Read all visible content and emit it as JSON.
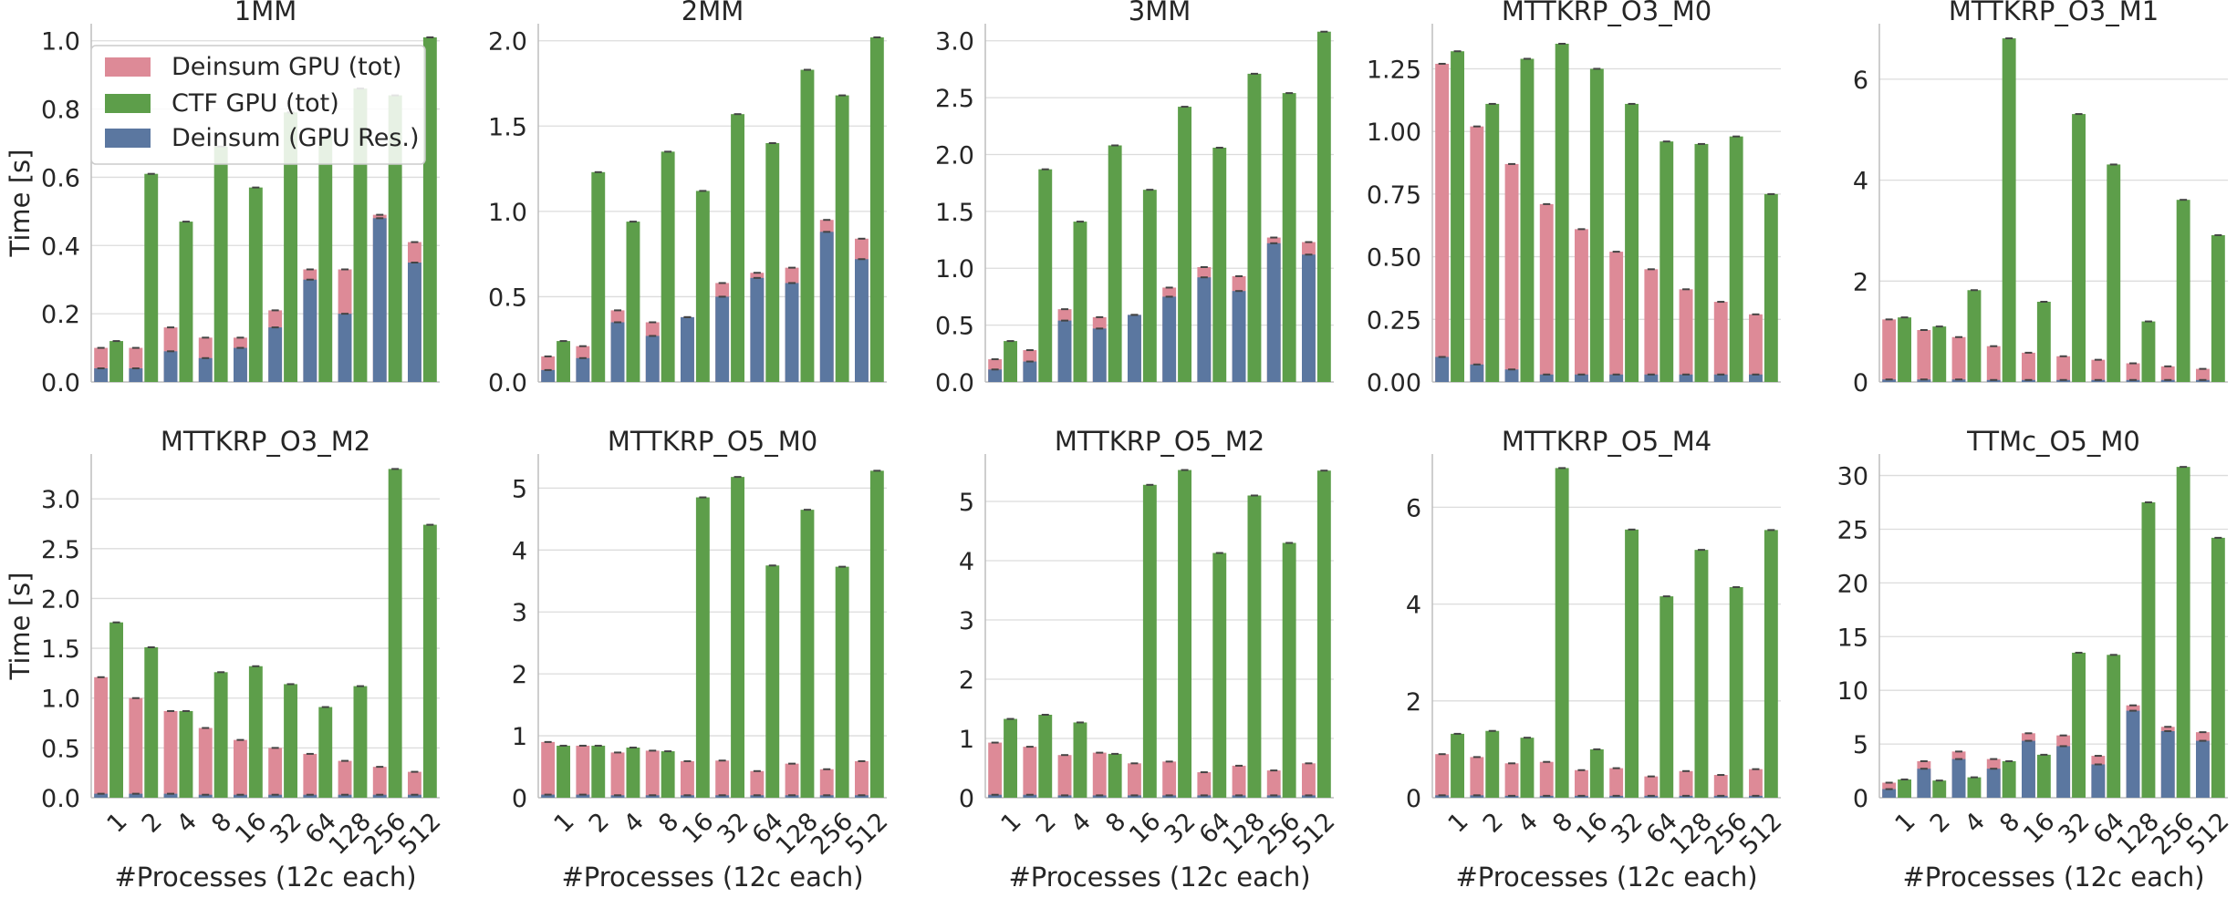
{
  "figure": {
    "ylabel": "Time [s]",
    "xlabel": "#Processes (12c each)",
    "legend": {
      "placement": "upper-left of first panel",
      "entries": [
        "Deinsum GPU (tot)",
        "CTF GPU (tot)",
        "Deinsum (GPU Res.)"
      ]
    },
    "colors": {
      "deinsum_tot": "#dd8a97",
      "ctf_tot": "#5d9e4a",
      "deinsum_res": "#5b77a0",
      "grid": "#dcdcdc",
      "axis": "#bdbdbd",
      "text": "#262626"
    }
  },
  "chart_data": [
    {
      "type": "bar",
      "title": "1MM",
      "categories": [
        "1",
        "2",
        "4",
        "8",
        "16",
        "32",
        "64",
        "128",
        "256",
        "512"
      ],
      "ylim": [
        0,
        1.05
      ],
      "yticks": [
        "0.0",
        "0.2",
        "0.4",
        "0.6",
        "0.8",
        "1.0"
      ],
      "series": [
        {
          "name": "Deinsum GPU (tot)",
          "values": [
            0.1,
            0.1,
            0.16,
            0.13,
            0.13,
            0.21,
            0.33,
            0.33,
            0.49,
            0.41
          ]
        },
        {
          "name": "CTF GPU (tot)",
          "values": [
            0.12,
            0.61,
            0.47,
            0.69,
            0.57,
            0.79,
            0.72,
            0.86,
            0.84,
            1.01
          ]
        },
        {
          "name": "Deinsum (GPU Res.)",
          "values": [
            0.04,
            0.04,
            0.09,
            0.07,
            0.1,
            0.16,
            0.3,
            0.2,
            0.48,
            0.35
          ]
        }
      ]
    },
    {
      "type": "bar",
      "title": "2MM",
      "categories": [
        "1",
        "2",
        "4",
        "8",
        "16",
        "32",
        "64",
        "128",
        "256",
        "512"
      ],
      "ylim": [
        0,
        2.1
      ],
      "yticks": [
        "0.0",
        "0.5",
        "1.0",
        "1.5",
        "2.0"
      ],
      "series": [
        {
          "name": "Deinsum GPU (tot)",
          "values": [
            0.15,
            0.21,
            0.42,
            0.35,
            0.38,
            0.58,
            0.64,
            0.67,
            0.95,
            0.84
          ]
        },
        {
          "name": "CTF GPU (tot)",
          "values": [
            0.24,
            1.23,
            0.94,
            1.35,
            1.12,
            1.57,
            1.4,
            1.83,
            1.68,
            2.02
          ]
        },
        {
          "name": "Deinsum (GPU Res.)",
          "values": [
            0.07,
            0.14,
            0.35,
            0.27,
            0.38,
            0.5,
            0.61,
            0.58,
            0.88,
            0.72
          ]
        }
      ]
    },
    {
      "type": "bar",
      "title": "3MM",
      "categories": [
        "1",
        "2",
        "4",
        "8",
        "16",
        "32",
        "64",
        "128",
        "256",
        "512"
      ],
      "ylim": [
        0,
        3.15
      ],
      "yticks": [
        "0.0",
        "0.5",
        "1.0",
        "1.5",
        "2.0",
        "2.5",
        "3.0"
      ],
      "series": [
        {
          "name": "Deinsum GPU (tot)",
          "values": [
            0.2,
            0.28,
            0.64,
            0.57,
            0.59,
            0.83,
            1.01,
            0.93,
            1.27,
            1.23
          ]
        },
        {
          "name": "CTF GPU (tot)",
          "values": [
            0.36,
            1.87,
            1.41,
            2.08,
            1.69,
            2.42,
            2.06,
            2.71,
            2.54,
            3.08
          ]
        },
        {
          "name": "Deinsum (GPU Res.)",
          "values": [
            0.11,
            0.18,
            0.54,
            0.47,
            0.59,
            0.75,
            0.92,
            0.8,
            1.22,
            1.12
          ]
        }
      ]
    },
    {
      "type": "bar",
      "title": "MTTKRP_O3_M0",
      "categories": [
        "1",
        "2",
        "4",
        "8",
        "16",
        "32",
        "64",
        "128",
        "256",
        "512"
      ],
      "ylim": [
        0,
        1.43
      ],
      "yticks": [
        "0.00",
        "0.25",
        "0.50",
        "0.75",
        "1.00",
        "1.25"
      ],
      "series": [
        {
          "name": "Deinsum GPU (tot)",
          "values": [
            1.27,
            1.02,
            0.87,
            0.71,
            0.61,
            0.52,
            0.45,
            0.37,
            0.32,
            0.27
          ]
        },
        {
          "name": "CTF GPU (tot)",
          "values": [
            1.32,
            1.11,
            1.29,
            1.35,
            1.25,
            1.11,
            0.96,
            0.95,
            0.98,
            0.75
          ]
        },
        {
          "name": "Deinsum (GPU Res.)",
          "values": [
            0.1,
            0.07,
            0.05,
            0.03,
            0.03,
            0.03,
            0.03,
            0.03,
            0.03,
            0.03
          ]
        }
      ]
    },
    {
      "type": "bar",
      "title": "MTTKRP_O3_M1",
      "categories": [
        "1",
        "2",
        "4",
        "8",
        "16",
        "32",
        "64",
        "128",
        "256",
        "512"
      ],
      "ylim": [
        0,
        7.1
      ],
      "yticks": [
        "0",
        "2",
        "4",
        "6"
      ],
      "series": [
        {
          "name": "Deinsum GPU (tot)",
          "values": [
            1.24,
            1.03,
            0.89,
            0.71,
            0.58,
            0.51,
            0.44,
            0.37,
            0.31,
            0.26
          ]
        },
        {
          "name": "CTF GPU (tot)",
          "values": [
            1.28,
            1.1,
            1.82,
            6.81,
            1.59,
            5.31,
            4.31,
            1.2,
            3.61,
            2.91
          ]
        },
        {
          "name": "Deinsum (GPU Res.)",
          "values": [
            0.05,
            0.05,
            0.05,
            0.04,
            0.04,
            0.04,
            0.04,
            0.04,
            0.04,
            0.04
          ]
        }
      ]
    },
    {
      "type": "bar",
      "title": "MTTKRP_O3_M2",
      "categories": [
        "1",
        "2",
        "4",
        "8",
        "16",
        "32",
        "64",
        "128",
        "256",
        "512"
      ],
      "ylim": [
        0,
        3.45
      ],
      "yticks": [
        "0.0",
        "0.5",
        "1.0",
        "1.5",
        "2.0",
        "2.5",
        "3.0"
      ],
      "series": [
        {
          "name": "Deinsum GPU (tot)",
          "values": [
            1.21,
            1.0,
            0.87,
            0.7,
            0.58,
            0.5,
            0.44,
            0.37,
            0.31,
            0.26
          ]
        },
        {
          "name": "CTF GPU (tot)",
          "values": [
            1.76,
            1.51,
            0.87,
            1.26,
            1.32,
            1.14,
            0.91,
            1.12,
            3.3,
            2.74
          ]
        },
        {
          "name": "Deinsum (GPU Res.)",
          "values": [
            0.04,
            0.04,
            0.04,
            0.03,
            0.03,
            0.03,
            0.03,
            0.03,
            0.03,
            0.03
          ]
        }
      ]
    },
    {
      "type": "bar",
      "title": "MTTKRP_O5_M0",
      "categories": [
        "1",
        "2",
        "4",
        "8",
        "16",
        "32",
        "64",
        "128",
        "256",
        "512"
      ],
      "ylim": [
        0,
        5.55
      ],
      "yticks": [
        "0",
        "1",
        "2",
        "3",
        "4",
        "5"
      ],
      "series": [
        {
          "name": "Deinsum GPU (tot)",
          "values": [
            0.9,
            0.84,
            0.73,
            0.76,
            0.59,
            0.6,
            0.43,
            0.55,
            0.46,
            0.59
          ]
        },
        {
          "name": "CTF GPU (tot)",
          "values": [
            0.84,
            0.84,
            0.81,
            0.75,
            4.85,
            5.18,
            3.75,
            4.65,
            3.73,
            5.28
          ]
        },
        {
          "name": "Deinsum (GPU Res.)",
          "values": [
            0.05,
            0.05,
            0.04,
            0.04,
            0.04,
            0.04,
            0.04,
            0.04,
            0.04,
            0.04
          ]
        }
      ]
    },
    {
      "type": "bar",
      "title": "MTTKRP_O5_M2",
      "categories": [
        "1",
        "2",
        "4",
        "8",
        "16",
        "32",
        "64",
        "128",
        "256",
        "512"
      ],
      "ylim": [
        0,
        5.8
      ],
      "yticks": [
        "0",
        "1",
        "2",
        "3",
        "4",
        "5"
      ],
      "series": [
        {
          "name": "Deinsum GPU (tot)",
          "values": [
            0.93,
            0.86,
            0.72,
            0.76,
            0.58,
            0.61,
            0.43,
            0.54,
            0.46,
            0.58
          ]
        },
        {
          "name": "CTF GPU (tot)",
          "values": [
            1.33,
            1.4,
            1.27,
            0.74,
            5.28,
            5.53,
            4.13,
            5.1,
            4.3,
            5.52
          ]
        },
        {
          "name": "Deinsum (GPU Res.)",
          "values": [
            0.05,
            0.05,
            0.04,
            0.04,
            0.04,
            0.04,
            0.04,
            0.04,
            0.04,
            0.04
          ]
        }
      ]
    },
    {
      "type": "bar",
      "title": "MTTKRP_O5_M4",
      "categories": [
        "1",
        "2",
        "4",
        "8",
        "16",
        "32",
        "64",
        "128",
        "256",
        "512"
      ],
      "ylim": [
        0,
        7.1
      ],
      "yticks": [
        "0",
        "2",
        "4",
        "6"
      ],
      "series": [
        {
          "name": "Deinsum GPU (tot)",
          "values": [
            0.9,
            0.84,
            0.71,
            0.74,
            0.57,
            0.61,
            0.44,
            0.55,
            0.47,
            0.59
          ]
        },
        {
          "name": "CTF GPU (tot)",
          "values": [
            1.32,
            1.38,
            1.24,
            6.81,
            1.0,
            5.54,
            4.16,
            5.12,
            4.35,
            5.53
          ]
        },
        {
          "name": "Deinsum (GPU Res.)",
          "values": [
            0.05,
            0.05,
            0.04,
            0.04,
            0.04,
            0.04,
            0.04,
            0.04,
            0.04,
            0.04
          ]
        }
      ]
    },
    {
      "type": "bar",
      "title": "TTMc_O5_M0",
      "categories": [
        "1",
        "2",
        "4",
        "8",
        "16",
        "32",
        "64",
        "128",
        "256",
        "512"
      ],
      "ylim": [
        0,
        32
      ],
      "yticks": [
        "0",
        "5",
        "10",
        "15",
        "20",
        "25",
        "30"
      ],
      "series": [
        {
          "name": "Deinsum GPU (tot)",
          "values": [
            1.4,
            3.4,
            4.3,
            3.6,
            6.0,
            5.8,
            3.9,
            8.6,
            6.6,
            6.1
          ]
        },
        {
          "name": "CTF GPU (tot)",
          "values": [
            1.7,
            1.6,
            1.9,
            3.4,
            4.0,
            13.5,
            13.3,
            27.5,
            30.8,
            24.2
          ]
        },
        {
          "name": "Deinsum (GPU Res.)",
          "values": [
            0.8,
            2.7,
            3.6,
            2.7,
            5.3,
            4.8,
            3.1,
            8.1,
            6.2,
            5.3
          ]
        }
      ]
    }
  ]
}
